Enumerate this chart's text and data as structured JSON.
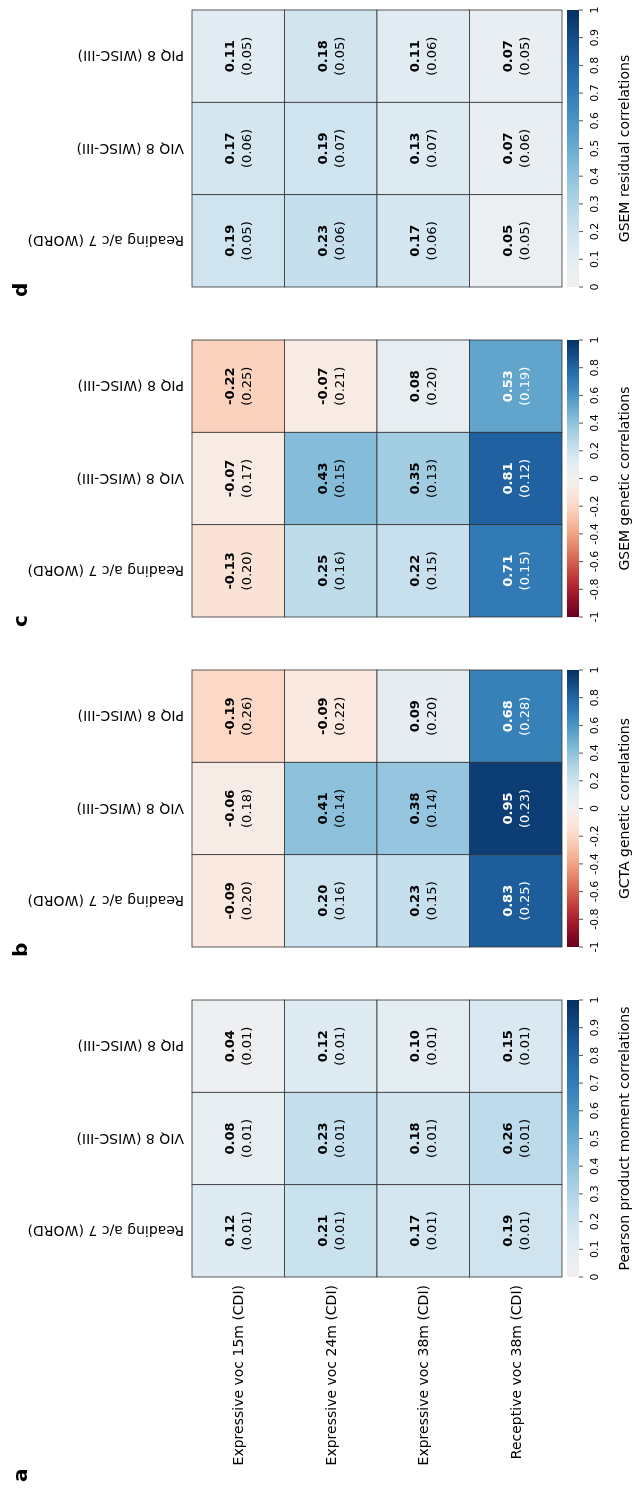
{
  "chart_data": [
    {
      "type": "heatmap",
      "title": "a",
      "categories": [
        "Expressive voc 15m (CDI)",
        "Expressive voc 24m (CDI)",
        "Expressive voc 38m (CDI)",
        "Receptive voc 38m (CDI)"
      ],
      "y_categories": [
        "PIQ 8 (WISC-III)",
        "VIQ 8 (WISC-III)",
        "Reading a/c 7 (WORD)"
      ],
      "cells": [
        [
          0.04,
          0.12,
          0.1,
          0.15
        ],
        [
          0.08,
          0.23,
          0.18,
          0.26
        ],
        [
          0.12,
          0.21,
          0.17,
          0.19
        ]
      ],
      "cell_labels": [
        [
          "0.04\n(0.01)",
          "0.12\n(0.01)",
          "0.10\n(0.01)",
          "0.15\n(0.01)"
        ],
        [
          "0.08\n(0.01)",
          "0.23\n(0.01)",
          "0.18\n(0.01)",
          "0.26\n(0.01)"
        ],
        [
          "0.12\n(0.01)",
          "0.21\n(0.01)",
          "0.17\n(0.01)",
          "0.19\n(0.01)"
        ]
      ],
      "clim": [
        0,
        1
      ],
      "cticks": [
        0,
        0.1,
        0.2,
        0.3,
        0.4,
        0.5,
        0.6,
        0.7,
        0.8,
        0.9,
        1
      ],
      "clabel": "Pearson product moment correlations"
    },
    {
      "type": "heatmap",
      "title": "b",
      "categories": [
        null,
        null,
        null,
        null
      ],
      "y_categories": [
        "PIQ 8 (WISC-III)",
        "VIQ 8 (WISC-III)",
        "Reading a/c 7 (WORD)"
      ],
      "tick_labels": "y",
      "cells": [
        [
          -0.19,
          -0.09,
          0.09,
          0.68
        ],
        [
          -0.06,
          0.41,
          0.38,
          0.95
        ],
        [
          -0.09,
          0.2,
          0.23,
          0.83
        ]
      ],
      "cell_labels": [
        [
          "-0.19\n(0.26)",
          "-0.09\n(0.22)",
          "0.09\n(0.20)",
          "0.68\n(0.28)"
        ],
        [
          "-0.06\n(0.18)",
          "0.41\n(0.14)",
          "0.38\n(0.14)",
          "0.95\n(0.23)"
        ],
        [
          "-0.09\n(0.20)",
          "0.20\n(0.16)",
          "0.23\n(0.15)",
          "0.83\n(0.25)"
        ]
      ],
      "clim": [
        -1,
        1
      ],
      "cticks": [
        -1,
        -0.8,
        -0.6,
        -0.4,
        -0.2,
        0,
        0.2,
        0.4,
        0.6,
        0.8,
        1
      ],
      "clabel": "GCTA genetic correlations"
    },
    {
      "type": "heatmap",
      "title": "c",
      "categories": [
        null,
        null,
        null,
        null
      ],
      "y_categories": [
        "PIQ 8 (WISC-III)",
        "VIQ 8 (WISC-III)",
        "Reading a/c 7 (WORD)"
      ],
      "tick_labels": "y",
      "cells": [
        [
          -0.22,
          -0.07,
          0.08,
          0.53
        ],
        [
          -0.07,
          0.43,
          0.35,
          0.81
        ],
        [
          -0.13,
          0.25,
          0.22,
          0.71
        ]
      ],
      "cell_labels": [
        [
          "-0.22\n(0.25)",
          "-0.07\n(0.21)",
          "0.08\n(0.20)",
          "0.53\n(0.19)"
        ],
        [
          "-0.07\n(0.17)",
          "0.43\n(0.15)",
          "0.35\n(0.13)",
          "0.81\n(0.12)"
        ],
        [
          "-0.13\n(0.20)",
          "0.25\n(0.16)",
          "0.22\n(0.15)",
          "0.71\n(0.15)"
        ]
      ],
      "clim": [
        -1,
        1
      ],
      "cticks": [
        -1,
        -0.8,
        -0.6,
        -0.4,
        -0.2,
        0,
        0.2,
        0.4,
        0.6,
        0.8,
        1
      ],
      "clabel": "GSEM genetic correlations"
    },
    {
      "type": "heatmap",
      "title": "d",
      "categories": [
        null,
        null,
        null,
        null
      ],
      "y_categories": [
        "PIQ 8 (WISC-III)",
        "VIQ 8 (WISC-III)",
        "Reading a/c 7 (WORD)"
      ],
      "tick_labels": "y",
      "cells": [
        [
          0.11,
          0.18,
          0.11,
          0.07
        ],
        [
          0.17,
          0.19,
          0.13,
          0.07
        ],
        [
          0.19,
          0.23,
          0.17,
          0.05
        ]
      ],
      "cell_labels": [
        [
          "0.11\n(0.05)",
          "0.18\n(0.05)",
          "0.11\n(0.06)",
          "0.07\n(0.05)"
        ],
        [
          "0.17\n(0.06)",
          "0.19\n(0.07)",
          "0.13\n(0.07)",
          "0.07\n(0.06)"
        ],
        [
          "0.19\n(0.05)",
          "0.23\n(0.06)",
          "0.17\n(0.06)",
          "0.05\n(0.05)"
        ]
      ],
      "clim": [
        0,
        1
      ],
      "cticks": [
        0,
        0.1,
        0.2,
        0.3,
        0.4,
        0.5,
        0.6,
        0.7,
        0.8,
        0.9,
        1
      ],
      "clabel": "GSEM residual correlations"
    }
  ]
}
